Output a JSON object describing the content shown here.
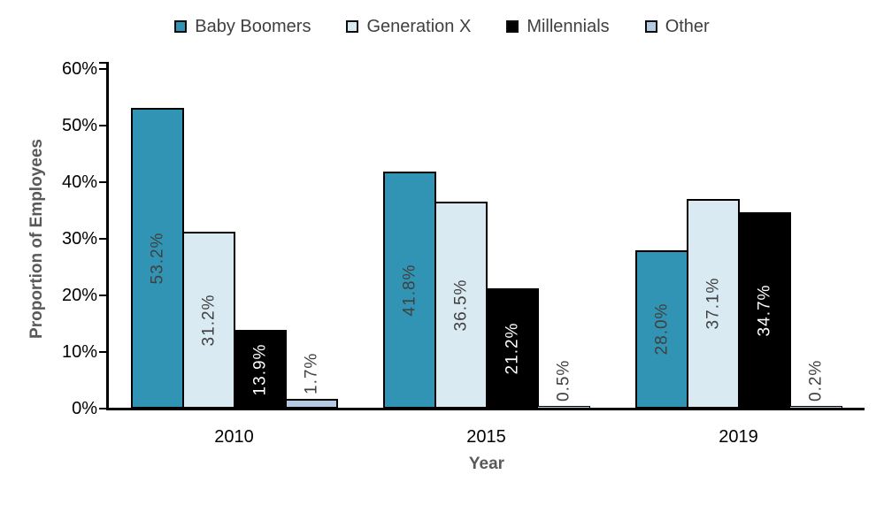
{
  "chart_data": {
    "type": "bar",
    "title": "",
    "xlabel": "Year",
    "ylabel": "Proportion of Employees",
    "categories": [
      "2010",
      "2015",
      "2019"
    ],
    "series": [
      {
        "name": "Baby Boomers",
        "color": "#3294B4",
        "label_color": "#404040",
        "values": [
          53.2,
          41.8,
          28.0
        ],
        "labels": [
          "53.2%",
          "41.8%",
          "28.0%"
        ]
      },
      {
        "name": "Generation X",
        "color": "#D9EAF2",
        "label_color": "#404040",
        "values": [
          31.2,
          36.5,
          37.1
        ],
        "labels": [
          "31.2%",
          "36.5%",
          "37.1%"
        ]
      },
      {
        "name": "Millennials",
        "color": "#000000",
        "label_color": "#FFFFFF",
        "values": [
          13.9,
          21.2,
          34.7
        ],
        "labels": [
          "13.9%",
          "21.2%",
          "34.7%"
        ]
      },
      {
        "name": "Other",
        "color": "#B4CBE6",
        "label_color": "#404040",
        "values": [
          1.7,
          0.5,
          0.2
        ],
        "labels": [
          "1.7%",
          "0.5%",
          "0.2%"
        ]
      }
    ],
    "ylim": [
      0,
      60
    ],
    "ytick_step": 10,
    "ytick_labels": [
      "0%",
      "10%",
      "20%",
      "30%",
      "40%",
      "50%",
      "60%"
    ],
    "grid": false,
    "legend_position": "top",
    "bar_border_color": "#000000"
  },
  "colors": {
    "background": "#FFFFFF",
    "axis": "#000000",
    "axis_title_text": "#595959",
    "tick_label_text": "#000000",
    "legend_text": "#404040",
    "outside_label_text": "#404040"
  }
}
